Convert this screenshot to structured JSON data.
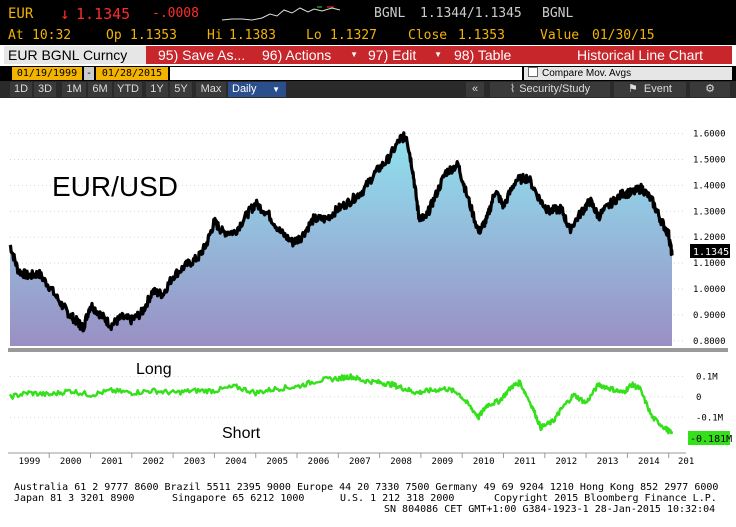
{
  "header": {
    "ticker": "EUR",
    "arrow": "↓",
    "last": "1.1345",
    "change": "-.0008",
    "source": "BGNL",
    "bid_ask": "1.1344/1.1345",
    "source2": "BGNL",
    "at_label": "At",
    "at_value": "10:32",
    "op_label": "Op",
    "op_value": "1.1353",
    "hi_label": "Hi",
    "hi_value": "1.1383",
    "lo_label": "Lo",
    "lo_value": "1.1327",
    "close_label": "Close",
    "close_value": "1.1353",
    "value_label": "Value",
    "value_value": "01/30/15"
  },
  "menu": {
    "security": "EUR BGNL Curncy",
    "save": "95) Save As...",
    "actions": "96) Actions",
    "edit": "97) Edit",
    "table": "98) Table",
    "title": "Historical Line Chart"
  },
  "dates": {
    "start": "01/19/1999",
    "dash": "-",
    "end": "01/28/2015",
    "compare": "Compare Mov. Avgs"
  },
  "periods": [
    "1D",
    "3D",
    "1M",
    "6M",
    "YTD",
    "1Y",
    "5Y",
    "Max"
  ],
  "period_selected": "Daily",
  "toolbar": {
    "collapse": "«",
    "security_study": "Security/Study",
    "event": "Event",
    "gear": "⚙"
  },
  "colors": {
    "bloomberg_orange": "#f3b400",
    "menu_red": "#c7262b",
    "price_line": "#000000",
    "positioning_line": "#33e019",
    "down": "#ff2a2a"
  },
  "chart_data": [
    {
      "type": "area",
      "title": "EUR/USD",
      "x_range": [
        1999.05,
        2015.08
      ],
      "ylim": [
        0.78,
        1.66
      ],
      "y_ticks": [
        "0.8000",
        "0.9000",
        "1.0000",
        "1.1000",
        "1.2000",
        "1.3000",
        "1.4000",
        "1.5000",
        "1.6000"
      ],
      "last_label": "1.1345",
      "series": [
        {
          "x": [
            1999.05,
            1999.25,
            1999.5,
            1999.75,
            2000.0,
            2000.3,
            2000.5,
            2000.7,
            2000.82,
            2001.0,
            2001.25,
            2001.5,
            2001.75,
            2002.0,
            2002.25,
            2002.5,
            2002.75,
            2003.0,
            2003.3,
            2003.6,
            2003.8,
            2004.0,
            2004.2,
            2004.5,
            2004.8,
            2005.0,
            2005.3,
            2005.6,
            2005.9,
            2006.1,
            2006.4,
            2006.7,
            2007.0,
            2007.3,
            2007.6,
            2007.9,
            2008.2,
            2008.5,
            2008.65,
            2008.8,
            2008.95,
            2009.1,
            2009.3,
            2009.6,
            2009.9,
            2010.1,
            2010.4,
            2010.6,
            2010.8,
            2011.0,
            2011.3,
            2011.6,
            2011.9,
            2012.1,
            2012.4,
            2012.6,
            2012.9,
            2013.1,
            2013.3,
            2013.6,
            2013.9,
            2014.1,
            2014.35,
            2014.6,
            2014.8,
            2015.0,
            2015.08
          ],
          "values": [
            1.17,
            1.07,
            1.05,
            1.06,
            1.01,
            0.94,
            0.9,
            0.87,
            0.85,
            0.94,
            0.9,
            0.86,
            0.89,
            0.88,
            0.91,
            0.99,
            0.98,
            1.05,
            1.09,
            1.12,
            1.17,
            1.26,
            1.22,
            1.22,
            1.29,
            1.33,
            1.29,
            1.22,
            1.18,
            1.2,
            1.27,
            1.27,
            1.31,
            1.34,
            1.38,
            1.45,
            1.5,
            1.58,
            1.59,
            1.46,
            1.28,
            1.27,
            1.34,
            1.45,
            1.48,
            1.37,
            1.22,
            1.27,
            1.38,
            1.32,
            1.42,
            1.43,
            1.34,
            1.3,
            1.31,
            1.23,
            1.3,
            1.34,
            1.28,
            1.33,
            1.37,
            1.37,
            1.39,
            1.34,
            1.27,
            1.21,
            1.13
          ]
        }
      ],
      "annotation_text": "EUR/USD"
    },
    {
      "type": "line",
      "labels": [
        "Long",
        "Short"
      ],
      "ylim": [
        -0.25,
        0.18
      ],
      "y_ticks": [
        "0.1M",
        "0",
        "-0.1M"
      ],
      "last_label": "-0.181M",
      "x_axis_labels": [
        "1999",
        "2000",
        "2001",
        "2002",
        "2003",
        "2004",
        "2005",
        "2006",
        "2007",
        "2008",
        "2009",
        "2010",
        "2011",
        "2012",
        "2013",
        "2014",
        "201"
      ],
      "series": [
        {
          "x": [
            1999.05,
            1999.5,
            2000.0,
            2000.5,
            2001.0,
            2001.5,
            2002.0,
            2002.5,
            2003.0,
            2003.5,
            2004.0,
            2004.5,
            2005.0,
            2005.5,
            2006.0,
            2006.5,
            2007.0,
            2007.3,
            2007.6,
            2008.0,
            2008.3,
            2008.6,
            2008.9,
            2009.2,
            2009.6,
            2009.9,
            2010.2,
            2010.4,
            2010.6,
            2010.9,
            2011.2,
            2011.4,
            2011.7,
            2011.9,
            2012.2,
            2012.4,
            2012.7,
            2013.0,
            2013.3,
            2013.6,
            2013.9,
            2014.1,
            2014.3,
            2014.6,
            2014.9,
            2015.08
          ],
          "values": [
            0.0,
            0.02,
            0.01,
            0.03,
            0.01,
            0.03,
            0.02,
            0.03,
            0.02,
            0.03,
            0.03,
            0.05,
            0.02,
            0.04,
            0.05,
            0.08,
            0.09,
            0.1,
            0.08,
            0.07,
            0.06,
            0.04,
            0.02,
            0.03,
            0.04,
            0.02,
            -0.05,
            -0.1,
            -0.04,
            -0.02,
            0.05,
            0.07,
            -0.05,
            -0.15,
            -0.12,
            -0.06,
            0.01,
            -0.03,
            0.06,
            0.04,
            0.02,
            0.06,
            0.04,
            -0.1,
            -0.15,
            -0.181
          ]
        }
      ]
    }
  ],
  "footer": {
    "line1": "Australia 61 2 9777 8600 Brazil 5511 2395 9000 Europe 44 20 7330 7500 Germany 49 69 9204 1210 Hong Kong 852 2977 6000",
    "line2a": "Japan 81 3 3201 8900",
    "line2b": "Singapore 65 6212 1000",
    "line2c": "U.S. 1 212 318 2000",
    "line2d": "Copyright 2015 Bloomberg Finance L.P.",
    "line3": "SN 804086 CET  GMT+1:00 G384-1923-1 28-Jan-2015 10:32:04"
  }
}
